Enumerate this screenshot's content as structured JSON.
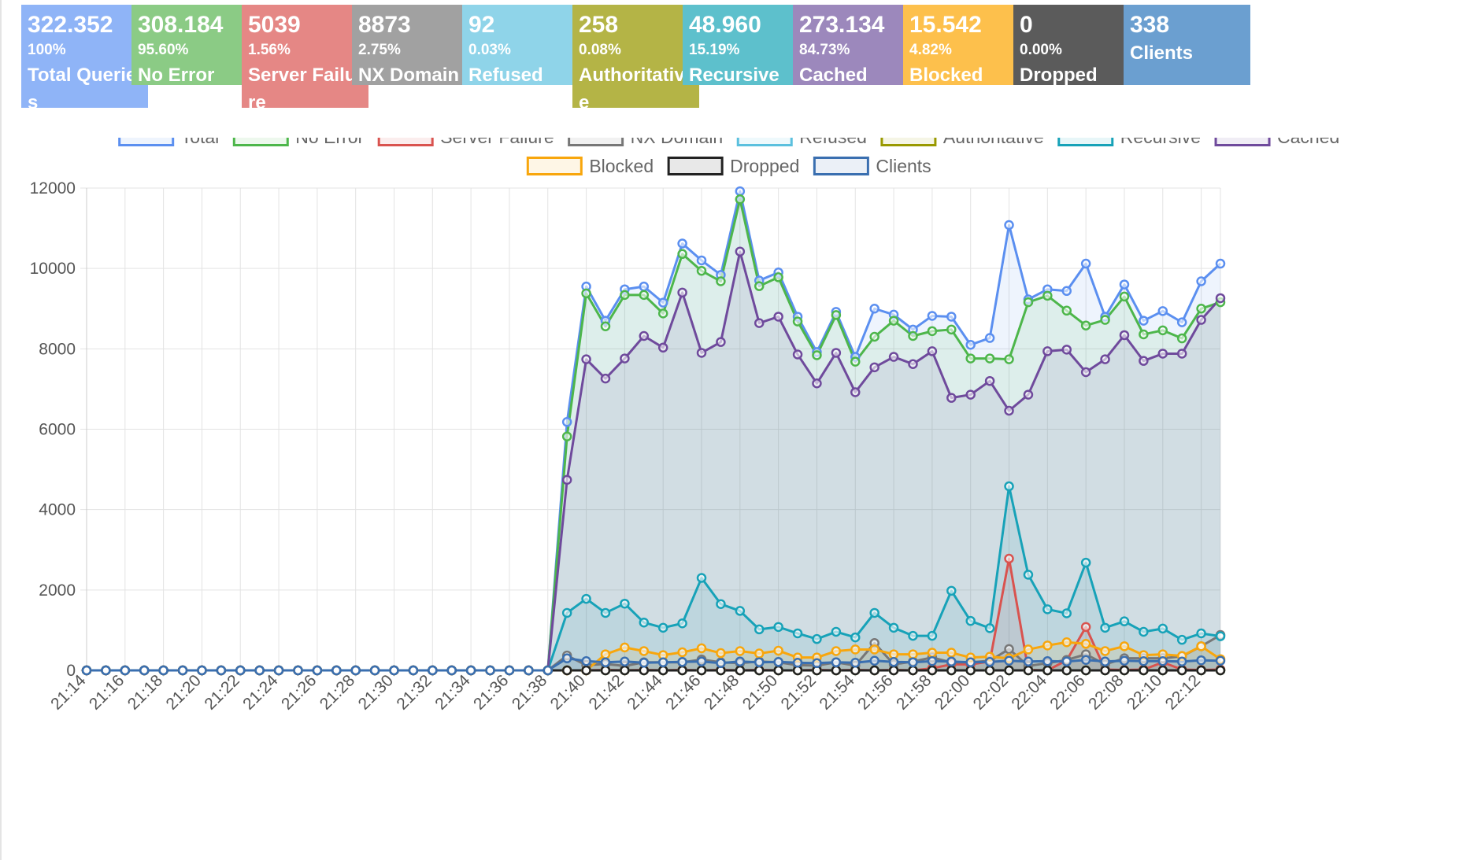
{
  "tiles": [
    {
      "value": "322.352",
      "percent": "100%",
      "label": "Total Queries",
      "color": "#8fb4f7"
    },
    {
      "value": "308.184",
      "percent": "95.60%",
      "label": "No Error",
      "color": "#8bcb85"
    },
    {
      "value": "5039",
      "percent": "1.56%",
      "label": "Server Failure",
      "color": "#e58785"
    },
    {
      "value": "8873",
      "percent": "2.75%",
      "label": "NX Domain",
      "color": "#a1a1a1"
    },
    {
      "value": "92",
      "percent": "0.03%",
      "label": "Refused",
      "color": "#8fd4e9"
    },
    {
      "value": "258",
      "percent": "0.08%",
      "label": "Authoritative",
      "color": "#b4b446"
    },
    {
      "value": "48.960",
      "percent": "15.19%",
      "label": "Recursive",
      "color": "#5dc0cc"
    },
    {
      "value": "273.134",
      "percent": "84.73%",
      "label": "Cached",
      "color": "#9c88bc"
    },
    {
      "value": "15.542",
      "percent": "4.82%",
      "label": "Blocked",
      "color": "#fdc04c"
    },
    {
      "value": "0",
      "percent": "0.00%",
      "label": "Dropped",
      "color": "#5b5b5b"
    },
    {
      "value": "338",
      "percent": "",
      "label": "Clients",
      "color": "#6b9fd0"
    }
  ],
  "chart_data": {
    "type": "line",
    "legend_position": "top",
    "grid": true,
    "ylim": [
      0,
      12000
    ],
    "y_ticks": [
      0,
      2000,
      4000,
      6000,
      8000,
      10000,
      12000
    ],
    "x_tick_labels": [
      "21:14",
      "21:16",
      "21:18",
      "21:20",
      "21:22",
      "21:24",
      "21:26",
      "21:28",
      "21:30",
      "21:32",
      "21:34",
      "21:36",
      "21:38",
      "21:40",
      "21:42",
      "21:44",
      "21:46",
      "21:48",
      "21:50",
      "21:52",
      "21:54",
      "21:56",
      "21:58",
      "22:00",
      "22:02",
      "22:04",
      "22:06",
      "22:08",
      "22:10",
      "22:12"
    ],
    "x": [
      "21:14",
      "21:15",
      "21:16",
      "21:17",
      "21:18",
      "21:19",
      "21:20",
      "21:21",
      "21:22",
      "21:23",
      "21:24",
      "21:25",
      "21:26",
      "21:27",
      "21:28",
      "21:29",
      "21:30",
      "21:31",
      "21:32",
      "21:33",
      "21:34",
      "21:35",
      "21:36",
      "21:37",
      "21:38",
      "21:39",
      "21:40",
      "21:41",
      "21:42",
      "21:43",
      "21:44",
      "21:45",
      "21:46",
      "21:47",
      "21:48",
      "21:49",
      "21:50",
      "21:51",
      "21:52",
      "21:53",
      "21:54",
      "21:55",
      "21:56",
      "21:57",
      "21:58",
      "21:59",
      "22:00",
      "22:01",
      "22:02",
      "22:03",
      "22:04",
      "22:05",
      "22:06",
      "22:07",
      "22:08",
      "22:09",
      "22:10",
      "22:11",
      "22:12",
      "22:13"
    ],
    "series": [
      {
        "name": "Total",
        "color": "#5b8ff0",
        "values": [
          0,
          0,
          0,
          0,
          0,
          0,
          0,
          0,
          0,
          0,
          0,
          0,
          0,
          0,
          0,
          0,
          0,
          0,
          0,
          0,
          0,
          0,
          0,
          0,
          0,
          6180,
          9550,
          8700,
          9480,
          9550,
          9150,
          10620,
          10200,
          9840,
          11920,
          9700,
          9900,
          8800,
          7920,
          8920,
          7800,
          9000,
          8850,
          8480,
          8820,
          8800,
          8100,
          8270,
          11080,
          9230,
          9480,
          9440,
          10120,
          8800,
          9600,
          8700,
          8940,
          8660,
          9680,
          10120
        ]
      },
      {
        "name": "No Error",
        "color": "#4db64b",
        "values": [
          0,
          0,
          0,
          0,
          0,
          0,
          0,
          0,
          0,
          0,
          0,
          0,
          0,
          0,
          0,
          0,
          0,
          0,
          0,
          0,
          0,
          0,
          0,
          0,
          0,
          5820,
          9380,
          8560,
          9340,
          9340,
          8880,
          10360,
          9940,
          9680,
          11720,
          9560,
          9780,
          8680,
          7840,
          8840,
          7680,
          8300,
          8700,
          8320,
          8440,
          8480,
          7760,
          7760,
          7740,
          9160,
          9320,
          8950,
          8580,
          8720,
          9300,
          8360,
          8460,
          8260,
          9000,
          9160
        ]
      },
      {
        "name": "Server Failure",
        "color": "#d9534f",
        "values": [
          0,
          0,
          0,
          0,
          0,
          0,
          0,
          0,
          0,
          0,
          0,
          0,
          0,
          0,
          0,
          0,
          0,
          0,
          0,
          0,
          0,
          0,
          0,
          0,
          0,
          0,
          0,
          10,
          0,
          10,
          0,
          10,
          0,
          10,
          0,
          10,
          0,
          0,
          10,
          0,
          10,
          0,
          10,
          0,
          50,
          150,
          150,
          220,
          2780,
          10,
          0,
          250,
          1080,
          20,
          10,
          20,
          200,
          20,
          10,
          20
        ]
      },
      {
        "name": "NX Domain",
        "color": "#777777",
        "values": [
          0,
          0,
          0,
          0,
          0,
          0,
          0,
          0,
          0,
          0,
          0,
          0,
          0,
          0,
          0,
          0,
          0,
          0,
          0,
          0,
          0,
          0,
          0,
          0,
          0,
          370,
          130,
          160,
          110,
          200,
          200,
          200,
          270,
          200,
          180,
          220,
          200,
          130,
          120,
          200,
          120,
          680,
          150,
          220,
          320,
          200,
          200,
          240,
          530,
          110,
          180,
          260,
          400,
          150,
          300,
          300,
          300,
          350,
          600,
          880
        ]
      },
      {
        "name": "Refused",
        "color": "#5bc0de",
        "values": [
          0,
          0,
          0,
          0,
          0,
          0,
          0,
          0,
          0,
          0,
          0,
          0,
          0,
          0,
          0,
          0,
          0,
          0,
          0,
          0,
          0,
          0,
          0,
          0,
          0,
          0,
          0,
          0,
          0,
          0,
          0,
          0,
          0,
          0,
          0,
          0,
          0,
          0,
          0,
          0,
          0,
          0,
          0,
          0,
          0,
          0,
          0,
          0,
          0,
          0,
          0,
          0,
          0,
          0,
          0,
          0,
          0,
          0,
          0,
          0
        ]
      },
      {
        "name": "Authoritative",
        "color": "#999900",
        "values": [
          0,
          0,
          0,
          0,
          0,
          0,
          0,
          0,
          0,
          0,
          0,
          0,
          0,
          0,
          0,
          0,
          0,
          0,
          0,
          0,
          0,
          0,
          0,
          0,
          0,
          0,
          0,
          0,
          0,
          0,
          0,
          0,
          0,
          0,
          0,
          0,
          0,
          0,
          0,
          0,
          0,
          0,
          0,
          0,
          0,
          0,
          0,
          0,
          0,
          0,
          0,
          0,
          0,
          0,
          0,
          0,
          0,
          0,
          0,
          0
        ]
      },
      {
        "name": "Recursive",
        "color": "#17a2b8",
        "values": [
          0,
          0,
          0,
          0,
          0,
          0,
          0,
          0,
          0,
          0,
          0,
          0,
          0,
          0,
          0,
          0,
          0,
          0,
          0,
          0,
          0,
          0,
          0,
          0,
          0,
          1430,
          1780,
          1430,
          1660,
          1190,
          1060,
          1170,
          2300,
          1650,
          1480,
          1020,
          1080,
          920,
          780,
          960,
          820,
          1430,
          1060,
          860,
          860,
          1980,
          1230,
          1050,
          4580,
          2380,
          1520,
          1420,
          2680,
          1060,
          1220,
          960,
          1040,
          760,
          920,
          850
        ]
      },
      {
        "name": "Cached",
        "color": "#6f4a9c",
        "values": [
          0,
          0,
          0,
          0,
          0,
          0,
          0,
          0,
          0,
          0,
          0,
          0,
          0,
          0,
          0,
          0,
          0,
          0,
          0,
          0,
          0,
          0,
          0,
          0,
          0,
          4740,
          7740,
          7260,
          7760,
          8320,
          8030,
          9400,
          7900,
          8170,
          10420,
          8640,
          8800,
          7860,
          7140,
          7900,
          6920,
          7540,
          7800,
          7620,
          7940,
          6780,
          6860,
          7200,
          6460,
          6860,
          7940,
          7980,
          7420,
          7740,
          8340,
          7700,
          7880,
          7880,
          8720,
          9260
        ]
      },
      {
        "name": "Blocked",
        "color": "#f8a60c",
        "values": [
          0,
          0,
          0,
          0,
          0,
          0,
          0,
          0,
          0,
          0,
          0,
          0,
          0,
          0,
          0,
          0,
          0,
          0,
          0,
          0,
          0,
          0,
          0,
          0,
          0,
          0,
          0,
          400,
          570,
          480,
          380,
          450,
          550,
          430,
          480,
          420,
          490,
          320,
          320,
          480,
          520,
          520,
          400,
          400,
          440,
          440,
          320,
          340,
          300,
          520,
          620,
          700,
          660,
          480,
          600,
          380,
          400,
          360,
          600,
          280
        ]
      },
      {
        "name": "Dropped",
        "color": "#222222",
        "values": [
          0,
          0,
          0,
          0,
          0,
          0,
          0,
          0,
          0,
          0,
          0,
          0,
          0,
          0,
          0,
          0,
          0,
          0,
          0,
          0,
          0,
          0,
          0,
          0,
          0,
          0,
          0,
          0,
          0,
          0,
          0,
          0,
          0,
          0,
          0,
          0,
          0,
          0,
          0,
          0,
          0,
          0,
          0,
          0,
          0,
          0,
          0,
          0,
          0,
          0,
          0,
          0,
          0,
          0,
          0,
          0,
          0,
          0,
          0,
          0
        ]
      },
      {
        "name": "Clients",
        "color": "#3a6fb0",
        "values": [
          0,
          0,
          0,
          0,
          0,
          0,
          0,
          0,
          0,
          0,
          0,
          0,
          0,
          0,
          0,
          0,
          0,
          0,
          0,
          0,
          0,
          0,
          0,
          0,
          0,
          300,
          230,
          200,
          220,
          190,
          200,
          210,
          220,
          180,
          220,
          200,
          210,
          190,
          180,
          200,
          190,
          240,
          210,
          200,
          230,
          220,
          200,
          210,
          240,
          220,
          230,
          220,
          260,
          220,
          240,
          230,
          230,
          220,
          250,
          240
        ]
      }
    ]
  }
}
